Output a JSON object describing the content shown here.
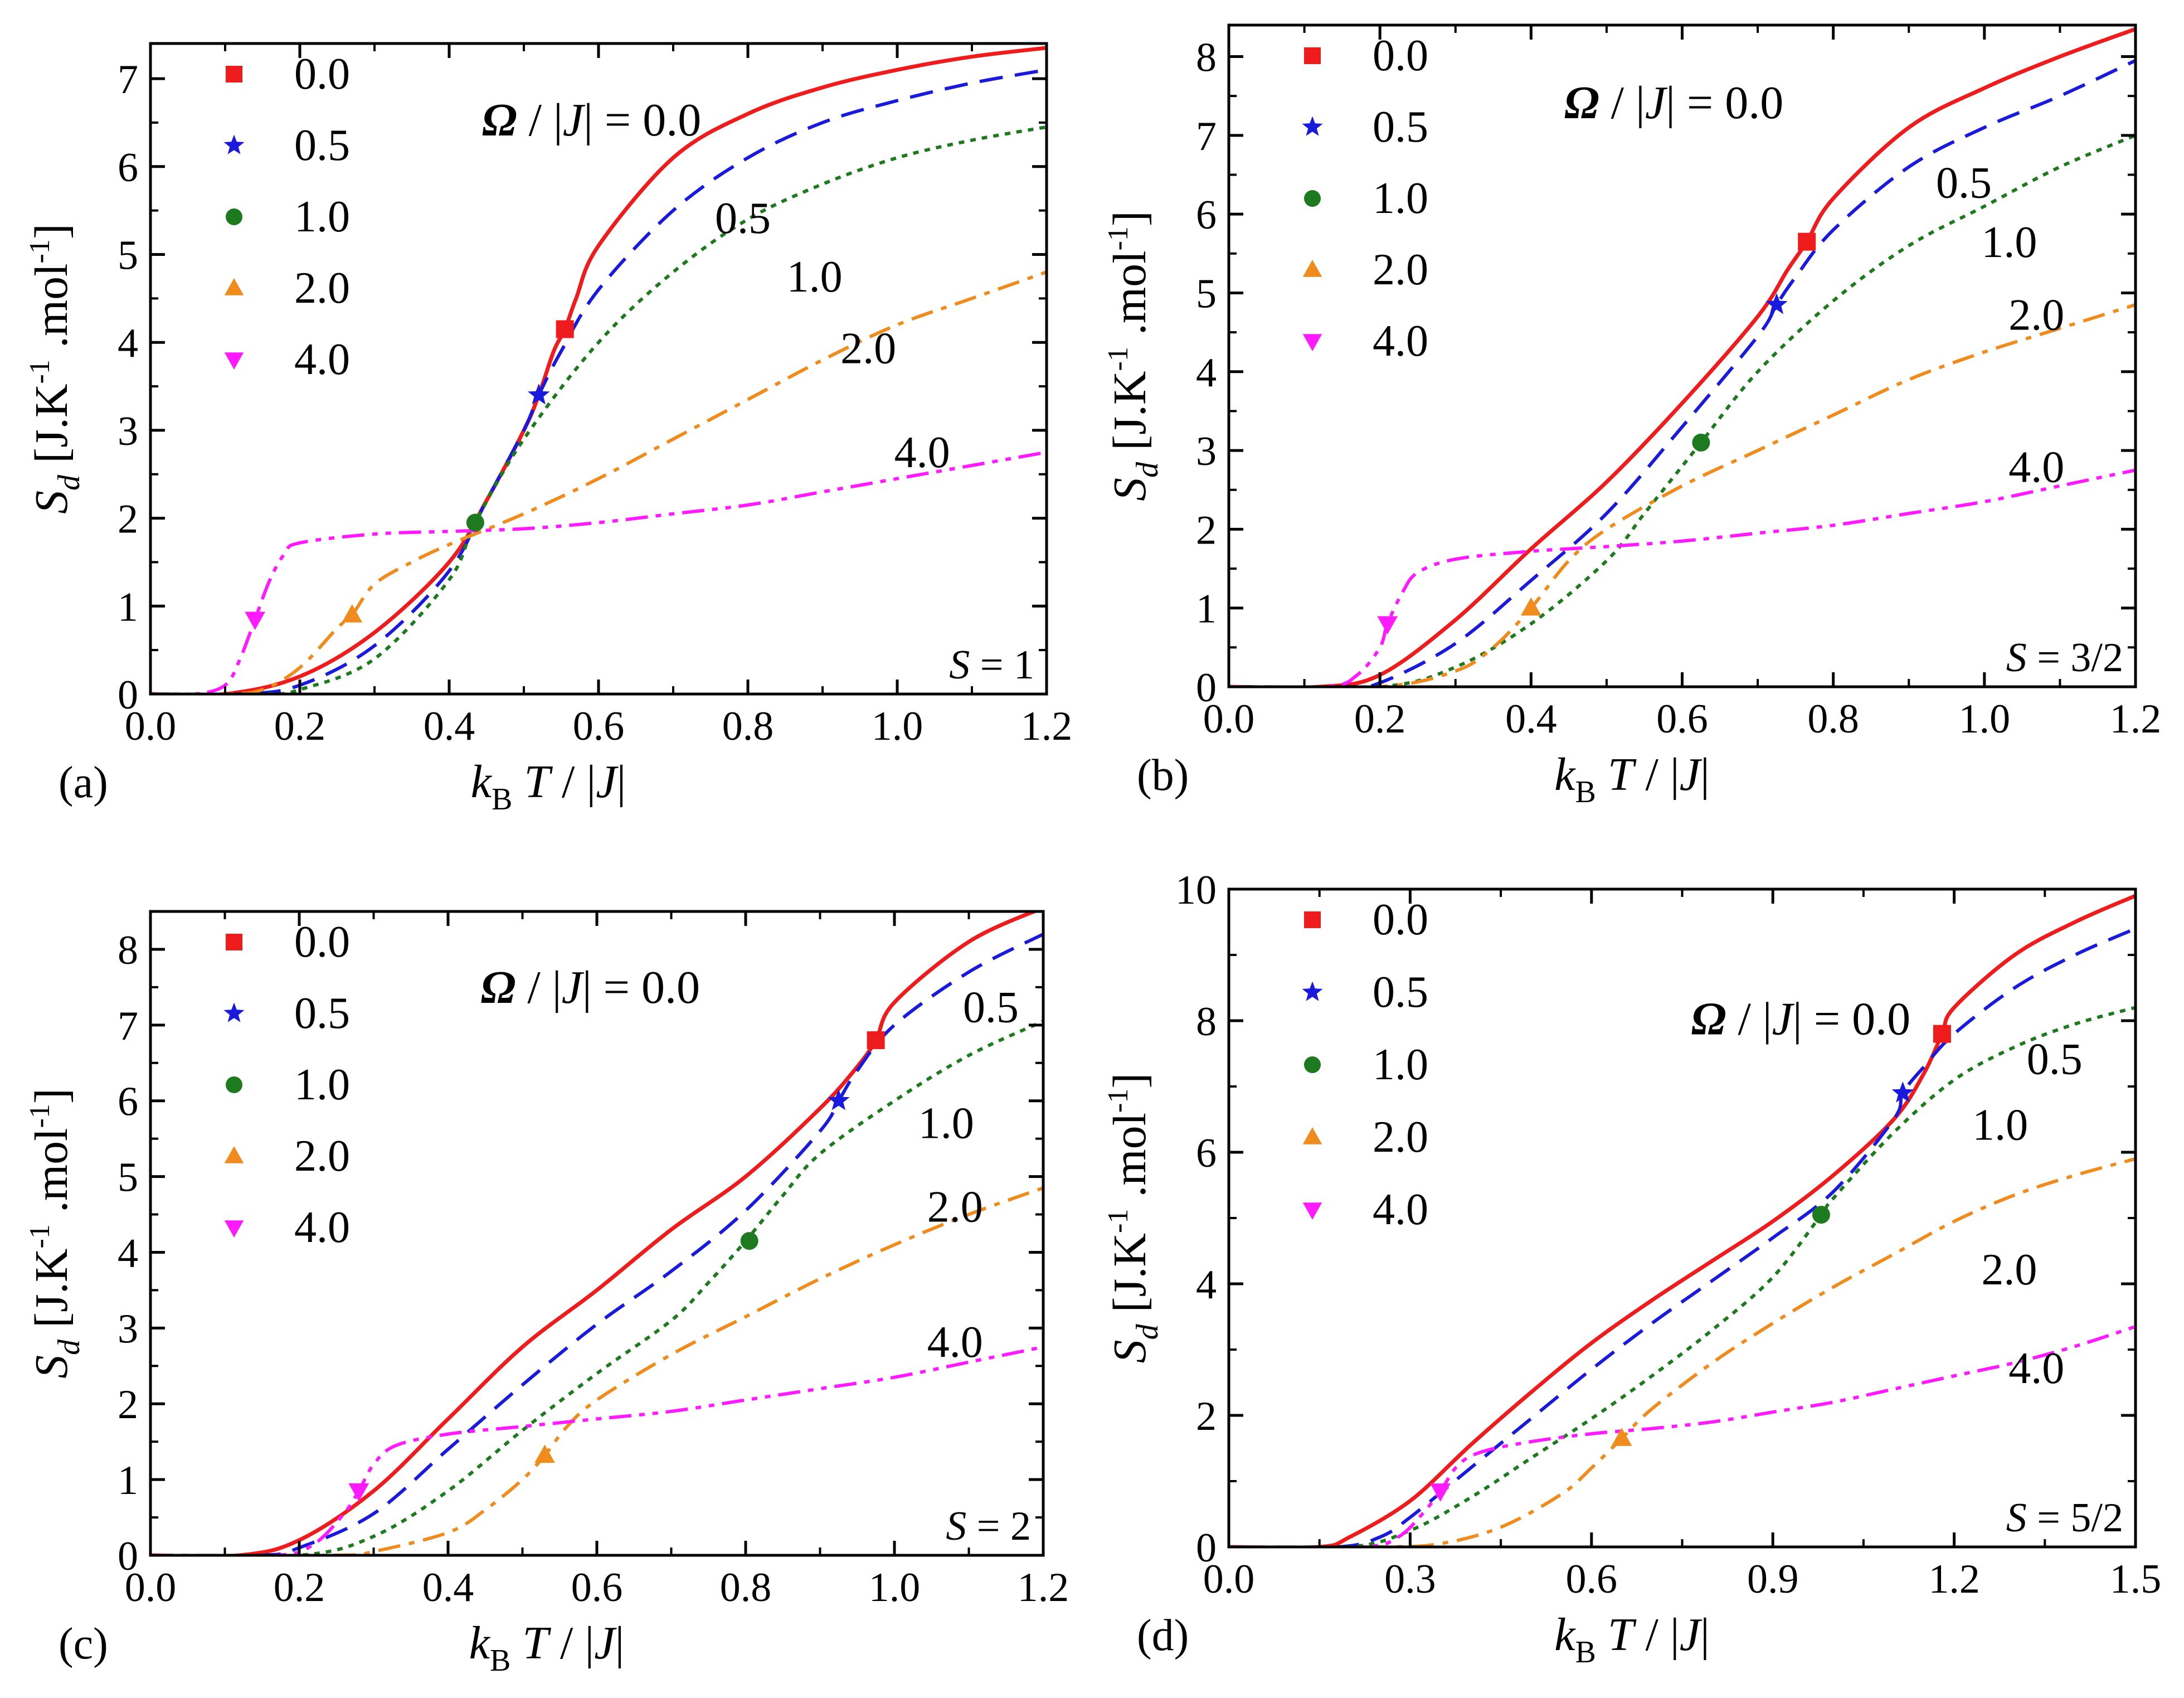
{
  "colors": {
    "0.0": "#ee1c1c",
    "0.5": "#1a1adc",
    "1.0": "#1e7a1e",
    "2.0": "#f08c1e",
    "4.0": "#ff1aff"
  },
  "legend": {
    "entries": [
      {
        "label": "0.0",
        "marker": "square",
        "color": "#ee1c1c"
      },
      {
        "label": "0.5",
        "marker": "star",
        "color": "#1a1adc"
      },
      {
        "label": "1.0",
        "marker": "circle",
        "color": "#1e7a1e"
      },
      {
        "label": "2.0",
        "marker": "triangle-up",
        "color": "#f08c1e"
      },
      {
        "label": "4.0",
        "marker": "triangle-down",
        "color": "#ff1aff"
      }
    ]
  },
  "curve_labels": {
    "omega_prefix": "Ω",
    "omega_suffix": "/|J| = 0.0",
    "others": [
      "0.5",
      "1.0",
      "2.0",
      "4.0"
    ]
  },
  "axis_text": {
    "x_k": "k",
    "x_sub": "B",
    "x_rest": " T / |J|",
    "y_S": "S",
    "y_sub": "d",
    "y_a": " [J.K",
    "y_sup1": "-1",
    "y_b": " .mol",
    "y_sup2": "-1",
    "y_c": "]"
  },
  "chart_data": [
    {
      "type": "line",
      "panel_label": "(a)",
      "spin_label": "S = 1",
      "xlim": [
        0,
        1.2
      ],
      "ylim": [
        0,
        7.4
      ],
      "xticks": [
        "0.0",
        "0.2",
        "0.4",
        "0.6",
        "0.8",
        "1.0",
        "1.2"
      ],
      "yticks": [
        "0",
        "1",
        "2",
        "3",
        "4",
        "5",
        "6",
        "7"
      ],
      "series": [
        {
          "name": "0.0",
          "style": "solid",
          "x": [
            0.1,
            0.2,
            0.3,
            0.4,
            0.45,
            0.5,
            0.52,
            0.54,
            0.555,
            0.57,
            0.6,
            0.7,
            0.8,
            0.9,
            1.0,
            1.1,
            1.2
          ],
          "y": [
            0,
            0.2,
            0.7,
            1.5,
            2.2,
            3.0,
            3.4,
            3.9,
            4.15,
            4.5,
            5.1,
            6.1,
            6.6,
            6.9,
            7.1,
            7.25,
            7.35
          ],
          "marker_x": 0.555,
          "marker_y": 4.15
        },
        {
          "name": "0.5",
          "style": "dashed",
          "x": [
            0.12,
            0.2,
            0.3,
            0.4,
            0.45,
            0.5,
            0.52,
            0.55,
            0.6,
            0.7,
            0.8,
            0.9,
            1.0,
            1.1,
            1.2
          ],
          "y": [
            0,
            0.1,
            0.55,
            1.4,
            2.2,
            3.0,
            3.4,
            3.9,
            4.6,
            5.5,
            6.1,
            6.5,
            6.75,
            6.95,
            7.1
          ],
          "marker_x": 0.52,
          "marker_y": 3.4
        },
        {
          "name": "1.0",
          "style": "dotted",
          "x": [
            0.15,
            0.2,
            0.3,
            0.4,
            0.435,
            0.5,
            0.6,
            0.7,
            0.8,
            0.9,
            1.0,
            1.1,
            1.2
          ],
          "y": [
            0,
            0.05,
            0.4,
            1.3,
            1.95,
            2.9,
            4.0,
            4.8,
            5.4,
            5.8,
            6.1,
            6.3,
            6.45
          ],
          "marker_x": 0.435,
          "marker_y": 1.95
        },
        {
          "name": "2.0",
          "style": "dashdot",
          "x": [
            0.1,
            0.15,
            0.2,
            0.25,
            0.27,
            0.3,
            0.35,
            0.4,
            0.5,
            0.6,
            0.7,
            0.8,
            0.9,
            1.0,
            1.1,
            1.2
          ],
          "y": [
            0,
            0.05,
            0.3,
            0.75,
            0.9,
            1.25,
            1.5,
            1.7,
            2.05,
            2.45,
            2.9,
            3.35,
            3.8,
            4.2,
            4.5,
            4.8
          ],
          "marker_x": 0.27,
          "marker_y": 0.9
        },
        {
          "name": "4.0",
          "style": "dashdotdot",
          "x": [
            0.06,
            0.1,
            0.12,
            0.14,
            0.16,
            0.18,
            0.2,
            0.3,
            0.4,
            0.5,
            0.6,
            0.7,
            0.8,
            0.9,
            1.0,
            1.1,
            1.2
          ],
          "y": [
            0,
            0.1,
            0.4,
            0.85,
            1.3,
            1.6,
            1.72,
            1.82,
            1.85,
            1.88,
            1.95,
            2.05,
            2.15,
            2.3,
            2.45,
            2.6,
            2.75
          ],
          "marker_x": 0.14,
          "marker_y": 0.85
        }
      ]
    },
    {
      "type": "line",
      "panel_label": "(b)",
      "spin_label": "S = 3/2",
      "xlim": [
        0,
        1.2
      ],
      "ylim": [
        0,
        8.4
      ],
      "xticks": [
        "0.0",
        "0.2",
        "0.4",
        "0.6",
        "0.8",
        "1.0",
        "1.2"
      ],
      "yticks": [
        "0",
        "1",
        "2",
        "3",
        "4",
        "5",
        "6",
        "7",
        "8"
      ],
      "series": [
        {
          "name": "0.0",
          "style": "solid",
          "x": [
            0.12,
            0.2,
            0.3,
            0.4,
            0.5,
            0.6,
            0.7,
            0.74,
            0.765,
            0.8,
            0.9,
            1.0,
            1.1,
            1.2
          ],
          "y": [
            0,
            0.15,
            0.85,
            1.75,
            2.6,
            3.6,
            4.7,
            5.3,
            5.65,
            6.2,
            7.1,
            7.6,
            8.0,
            8.35
          ],
          "marker_x": 0.765,
          "marker_y": 5.65
        },
        {
          "name": "0.5",
          "style": "dashed",
          "x": [
            0.15,
            0.2,
            0.3,
            0.4,
            0.5,
            0.6,
            0.7,
            0.725,
            0.75,
            0.8,
            0.9,
            1.0,
            1.1,
            1.2
          ],
          "y": [
            0,
            0.05,
            0.55,
            1.35,
            2.2,
            3.3,
            4.45,
            4.85,
            5.2,
            5.8,
            6.6,
            7.1,
            7.5,
            7.95
          ],
          "marker_x": 0.725,
          "marker_y": 4.85
        },
        {
          "name": "1.0",
          "style": "dotted",
          "x": [
            0.2,
            0.3,
            0.4,
            0.5,
            0.55,
            0.6,
            0.625,
            0.7,
            0.8,
            0.9,
            1.0,
            1.1,
            1.2
          ],
          "y": [
            0,
            0.25,
            0.8,
            1.6,
            2.2,
            2.8,
            3.1,
            4.0,
            4.9,
            5.6,
            6.1,
            6.6,
            7.0
          ],
          "marker_x": 0.625,
          "marker_y": 3.1
        },
        {
          "name": "2.0",
          "style": "dashdot",
          "x": [
            0.2,
            0.3,
            0.35,
            0.4,
            0.45,
            0.5,
            0.6,
            0.7,
            0.8,
            0.9,
            1.0,
            1.1,
            1.2
          ],
          "y": [
            0,
            0.2,
            0.5,
            1.0,
            1.6,
            2.0,
            2.55,
            3.0,
            3.45,
            3.9,
            4.25,
            4.55,
            4.85
          ],
          "marker_x": 0.4,
          "marker_y": 1.0
        },
        {
          "name": "4.0",
          "style": "dashdotdot",
          "x": [
            0.13,
            0.17,
            0.2,
            0.21,
            0.23,
            0.25,
            0.3,
            0.4,
            0.5,
            0.6,
            0.7,
            0.8,
            0.9,
            1.0,
            1.1,
            1.2
          ],
          "y": [
            0,
            0.15,
            0.5,
            0.8,
            1.2,
            1.45,
            1.62,
            1.72,
            1.78,
            1.85,
            1.95,
            2.05,
            2.2,
            2.35,
            2.55,
            2.75
          ],
          "marker_x": 0.21,
          "marker_y": 0.8
        }
      ]
    },
    {
      "type": "line",
      "panel_label": "(c)",
      "spin_label": "S = 2",
      "xlim": [
        0,
        1.2
      ],
      "ylim": [
        0,
        8.5
      ],
      "xticks": [
        "0.0",
        "0.2",
        "0.4",
        "0.6",
        "0.8",
        "1.0",
        "1.2"
      ],
      "yticks": [
        "0",
        "1",
        "2",
        "3",
        "4",
        "5",
        "6",
        "7",
        "8"
      ],
      "series": [
        {
          "name": "0.0",
          "style": "solid",
          "x": [
            0.12,
            0.2,
            0.3,
            0.4,
            0.5,
            0.6,
            0.7,
            0.8,
            0.9,
            0.95,
            0.975,
            1.0,
            1.1,
            1.2
          ],
          "y": [
            0,
            0.2,
            0.85,
            1.8,
            2.75,
            3.5,
            4.3,
            5.0,
            5.9,
            6.45,
            6.8,
            7.3,
            8.1,
            8.55
          ],
          "marker_x": 0.975,
          "marker_y": 6.8
        },
        {
          "name": "0.5",
          "style": "dashed",
          "x": [
            0.15,
            0.2,
            0.3,
            0.4,
            0.5,
            0.6,
            0.7,
            0.8,
            0.9,
            0.925,
            0.95,
            1.0,
            1.1,
            1.2
          ],
          "y": [
            0,
            0.1,
            0.55,
            1.4,
            2.25,
            3.05,
            3.75,
            4.55,
            5.6,
            6.0,
            6.4,
            7.0,
            7.7,
            8.2
          ],
          "marker_x": 0.925,
          "marker_y": 6.0
        },
        {
          "name": "1.0",
          "style": "dotted",
          "x": [
            0.2,
            0.3,
            0.4,
            0.5,
            0.6,
            0.7,
            0.75,
            0.8,
            0.85,
            0.9,
            1.0,
            1.1,
            1.2
          ],
          "y": [
            0,
            0.25,
            0.85,
            1.65,
            2.4,
            3.1,
            3.6,
            4.15,
            4.75,
            5.3,
            6.0,
            6.6,
            7.05
          ],
          "marker_x": 0.805,
          "marker_y": 4.15
        },
        {
          "name": "2.0",
          "style": "dashdot",
          "x": [
            0.25,
            0.3,
            0.4,
            0.45,
            0.5,
            0.53,
            0.56,
            0.6,
            0.7,
            0.8,
            0.9,
            1.0,
            1.1,
            1.2
          ],
          "y": [
            0,
            0.05,
            0.3,
            0.6,
            1.0,
            1.32,
            1.7,
            2.05,
            2.65,
            3.15,
            3.65,
            4.1,
            4.5,
            4.85
          ],
          "marker_x": 0.53,
          "marker_y": 1.32
        },
        {
          "name": "4.0",
          "style": "dashdotdot",
          "x": [
            0.17,
            0.22,
            0.26,
            0.28,
            0.3,
            0.33,
            0.4,
            0.5,
            0.6,
            0.7,
            0.8,
            0.9,
            1.0,
            1.1,
            1.2
          ],
          "y": [
            0,
            0.15,
            0.55,
            0.85,
            1.2,
            1.45,
            1.6,
            1.7,
            1.8,
            1.9,
            2.05,
            2.2,
            2.35,
            2.55,
            2.75
          ],
          "marker_x": 0.28,
          "marker_y": 0.85
        }
      ]
    },
    {
      "type": "line",
      "panel_label": "(d)",
      "spin_label": "S = 5/2",
      "xlim": [
        0,
        1.5
      ],
      "ylim": [
        0,
        10
      ],
      "xticks": [
        "0.0",
        "0.3",
        "0.6",
        "0.9",
        "1.2",
        "1.5"
      ],
      "yticks": [
        "0",
        "2",
        "4",
        "6",
        "8",
        "10"
      ],
      "series": [
        {
          "name": "0.0",
          "style": "solid",
          "x": [
            0.15,
            0.2,
            0.3,
            0.4,
            0.5,
            0.6,
            0.7,
            0.8,
            0.9,
            1.0,
            1.1,
            1.15,
            1.18,
            1.2,
            1.3,
            1.4,
            1.5
          ],
          "y": [
            0,
            0.15,
            0.7,
            1.55,
            2.35,
            3.1,
            3.75,
            4.35,
            4.95,
            5.65,
            6.5,
            7.2,
            7.8,
            8.2,
            9.0,
            9.5,
            9.9
          ],
          "marker_x": 1.18,
          "marker_y": 7.8
        },
        {
          "name": "0.5",
          "style": "dashed",
          "x": [
            0.18,
            0.25,
            0.3,
            0.4,
            0.5,
            0.6,
            0.7,
            0.8,
            0.9,
            1.0,
            1.1,
            1.115,
            1.15,
            1.2,
            1.3,
            1.4,
            1.5
          ],
          "y": [
            0,
            0.15,
            0.45,
            1.2,
            1.95,
            2.7,
            3.4,
            4.05,
            4.7,
            5.4,
            6.5,
            6.9,
            7.3,
            7.8,
            8.5,
            9.0,
            9.4
          ],
          "marker_x": 1.115,
          "marker_y": 6.9
        },
        {
          "name": "1.0",
          "style": "dotted",
          "x": [
            0.2,
            0.3,
            0.4,
            0.5,
            0.6,
            0.7,
            0.8,
            0.9,
            0.98,
            1.0,
            1.1,
            1.2,
            1.3,
            1.4,
            1.5
          ],
          "y": [
            0,
            0.25,
            0.75,
            1.35,
            1.95,
            2.6,
            3.3,
            4.1,
            5.05,
            5.3,
            6.3,
            7.1,
            7.6,
            7.95,
            8.2
          ],
          "marker_x": 0.98,
          "marker_y": 5.05
        },
        {
          "name": "2.0",
          "style": "dashdot",
          "x": [
            0.25,
            0.35,
            0.45,
            0.55,
            0.6,
            0.65,
            0.7,
            0.8,
            0.9,
            1.0,
            1.1,
            1.2,
            1.3,
            1.4,
            1.5
          ],
          "y": [
            0,
            0.05,
            0.3,
            0.8,
            1.2,
            1.65,
            2.1,
            2.8,
            3.4,
            3.95,
            4.45,
            4.95,
            5.35,
            5.65,
            5.9
          ],
          "marker_x": 0.65,
          "marker_y": 1.65
        },
        {
          "name": "4.0",
          "style": "dashdotdot",
          "x": [
            0.22,
            0.28,
            0.32,
            0.35,
            0.38,
            0.42,
            0.5,
            0.6,
            0.7,
            0.8,
            0.9,
            1.0,
            1.1,
            1.2,
            1.3,
            1.4,
            1.5
          ],
          "y": [
            0,
            0.15,
            0.5,
            0.85,
            1.25,
            1.45,
            1.6,
            1.72,
            1.8,
            1.9,
            2.05,
            2.2,
            2.4,
            2.6,
            2.8,
            3.05,
            3.35
          ],
          "marker_x": 0.35,
          "marker_y": 0.85
        }
      ]
    }
  ]
}
